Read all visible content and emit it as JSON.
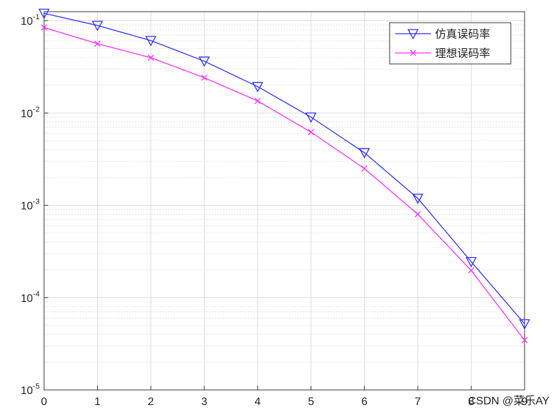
{
  "chart_data": {
    "type": "line",
    "x": [
      0,
      1,
      2,
      3,
      4,
      5,
      6,
      7,
      8,
      9
    ],
    "series": [
      {
        "name": "仿真误码率",
        "color": "#2b2bff",
        "marker": "triangle-down",
        "values": [
          0.12,
          0.0887,
          0.0608,
          0.0364,
          0.0193,
          0.00902,
          0.00371,
          0.00119,
          0.000245,
          5.2e-05
        ]
      },
      {
        "name": "理想误码率",
        "color": "#ff2bff",
        "marker": "x",
        "values": [
          0.0843,
          0.0563,
          0.0397,
          0.0241,
          0.0135,
          0.0062,
          0.0025,
          0.0008,
          0.000197,
          3.46e-05
        ]
      }
    ],
    "xlim": [
      0,
      9
    ],
    "xticks": [
      0,
      1,
      2,
      3,
      4,
      5,
      6,
      7,
      8,
      9
    ],
    "ylim": [
      1e-05,
      0.125
    ],
    "log_y": true,
    "yticks": [
      {
        "value": 1e-05,
        "label": "10",
        "exponent": "-5"
      },
      {
        "value": 0.0001,
        "label": "10",
        "exponent": "-4"
      },
      {
        "value": 0.001,
        "label": "10",
        "exponent": "-3"
      },
      {
        "value": 0.01,
        "label": "10",
        "exponent": "-2"
      },
      {
        "value": 0.1,
        "label": "10",
        "exponent": "-1"
      }
    ],
    "grid": true,
    "minor_grid": true,
    "legend": "upper right",
    "watermark": "CSDN @菜乐AY"
  }
}
